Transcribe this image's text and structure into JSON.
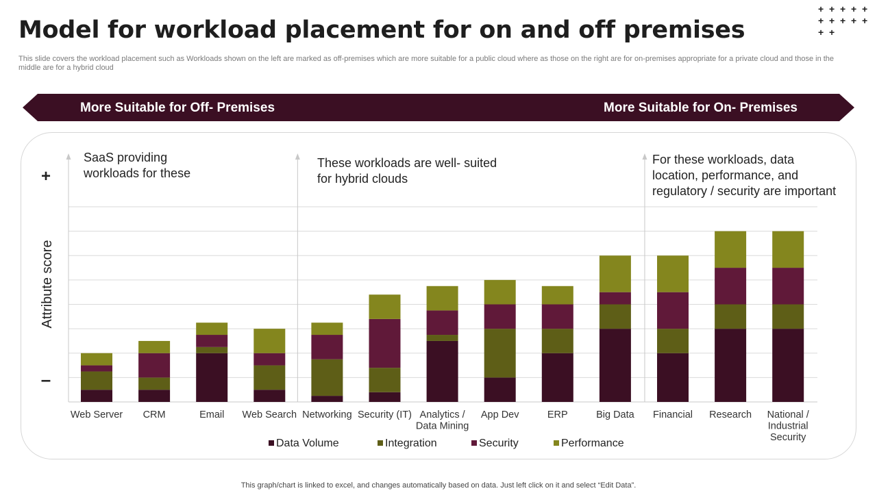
{
  "slide": {
    "title": "Model for workload placement for on and off premises",
    "subtitle": "This slide covers the workload placement such as Workloads shown on the left are marked as off-premises which are more suitable for a public cloud where as those on the right are for  on-premises appropriate for a private  cloud and those in the middle are for a hybrid cloud",
    "banner_left": "More Suitable for Off- Premises",
    "banner_right": "More Suitable for On- Premises",
    "footer": "This graph/chart is linked to excel,  and changes automatically based on data. Just left click on it and select “Edit Data”.",
    "plus_marks": [
      "+",
      "+",
      "+",
      "+",
      "+",
      "+",
      "+",
      "+",
      "+",
      "+",
      "+",
      "+"
    ]
  },
  "chart_data": {
    "type": "bar",
    "stacked": true,
    "ylabel": "Attribute score",
    "y_top_marker": "+",
    "y_bottom_marker": "–",
    "ylim": [
      0,
      16
    ],
    "grid": true,
    "legend_position": "bottom",
    "categories": [
      "Web Server",
      "CRM",
      "Email",
      "Web Search",
      "Networking",
      "Security (IT)",
      "Analytics / Data Mining",
      "App Dev",
      "ERP",
      "Big Data",
      "Financial",
      "Research",
      "National / Industrial Security"
    ],
    "series": [
      {
        "name": "Data Volume",
        "color": "#3b0f23",
        "values": [
          1,
          1,
          4,
          1,
          0.5,
          0.8,
          5,
          2,
          4,
          6,
          4,
          6,
          6
        ]
      },
      {
        "name": "Integration",
        "color": "#5e5e17",
        "values": [
          1.5,
          1,
          0.5,
          2,
          3,
          2,
          0.5,
          4,
          2,
          2,
          2,
          2,
          2
        ]
      },
      {
        "name": "Security",
        "color": "#601939",
        "values": [
          0.5,
          2,
          1,
          1,
          2,
          4,
          2,
          2,
          2,
          1,
          3,
          3,
          3
        ]
      },
      {
        "name": "Performance",
        "color": "#84861e",
        "values": [
          1,
          1,
          1,
          2,
          1,
          2,
          2,
          2,
          1.5,
          3,
          3,
          3,
          3
        ]
      }
    ],
    "annotations": [
      {
        "text": "SaaS providing workloads for these",
        "lines": [
          "SaaS providing",
          "workloads for these"
        ]
      },
      {
        "text": "These workloads are well- suited for hybrid clouds",
        "lines": [
          "These workloads are well- suited",
          "for hybrid clouds"
        ]
      },
      {
        "text": "For these workloads, data location, performance, and regulatory / security are important",
        "lines": [
          "For these workloads, data",
          "location, performance, and",
          "regulatory / security are important"
        ]
      }
    ],
    "category_lines": [
      [
        "Web Server"
      ],
      [
        "CRM"
      ],
      [
        "Email"
      ],
      [
        "Web Search"
      ],
      [
        "Networking"
      ],
      [
        "Security (IT)"
      ],
      [
        "Analytics /",
        "Data Mining"
      ],
      [
        "App Dev"
      ],
      [
        "ERP"
      ],
      [
        "Big Data"
      ],
      [
        "Financial"
      ],
      [
        "Research"
      ],
      [
        "National /",
        "Industrial",
        "Security"
      ]
    ],
    "section_dividers_after_index": [
      -1,
      3,
      9
    ]
  }
}
